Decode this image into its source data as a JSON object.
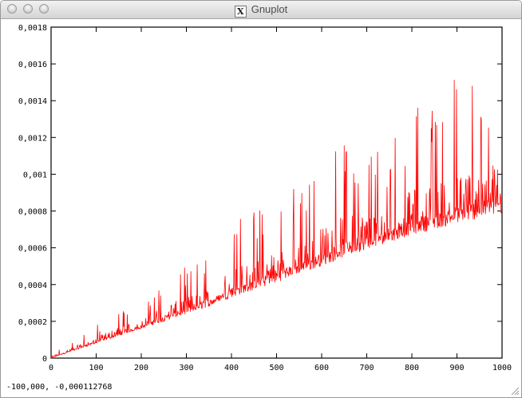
{
  "window": {
    "title": "Gnuplot",
    "app_icon": "x11-icon"
  },
  "status": {
    "coordinates": "-100,000, -0,000112768"
  },
  "chart_data": {
    "type": "line",
    "title": "",
    "xlabel": "",
    "ylabel": "",
    "xlim": [
      0,
      1000
    ],
    "ylim": [
      0,
      0.0018
    ],
    "grid": false,
    "legend": "none",
    "series_color": "#ff0000",
    "x_ticks": [
      "0",
      "100",
      "200",
      "300",
      "400",
      "500",
      "600",
      "700",
      "800",
      "900",
      "1000"
    ],
    "y_ticks": [
      "0",
      "0,0002",
      "0,0004",
      "0,0006",
      "0,0008",
      "0,001",
      "0,0012",
      "0,0014",
      "0,0016",
      "0,0018"
    ],
    "series": [
      {
        "x": [
          0,
          50,
          100,
          150,
          200,
          250,
          300,
          350,
          400,
          450,
          500,
          550,
          600,
          650,
          700,
          750,
          800,
          850,
          900,
          950,
          1000
        ],
        "baseline": [
          0,
          4e-05,
          8e-05,
          0.00012,
          0.00016,
          0.0002,
          0.00024,
          0.00028,
          0.00033,
          0.00037,
          0.00041,
          0.00046,
          0.0005,
          0.00055,
          0.00059,
          0.00063,
          0.00067,
          0.0007,
          0.00073,
          0.00076,
          0.00078
        ],
        "peaks": [
          3e-05,
          0.0001,
          0.00018,
          0.00026,
          0.0003,
          0.00045,
          0.0005,
          0.00058,
          0.0008,
          0.0008,
          0.00097,
          0.00092,
          0.0011,
          0.0012,
          0.00116,
          0.00118,
          0.00138,
          0.0014,
          0.00155,
          0.00158,
          0.0016
        ]
      }
    ]
  }
}
